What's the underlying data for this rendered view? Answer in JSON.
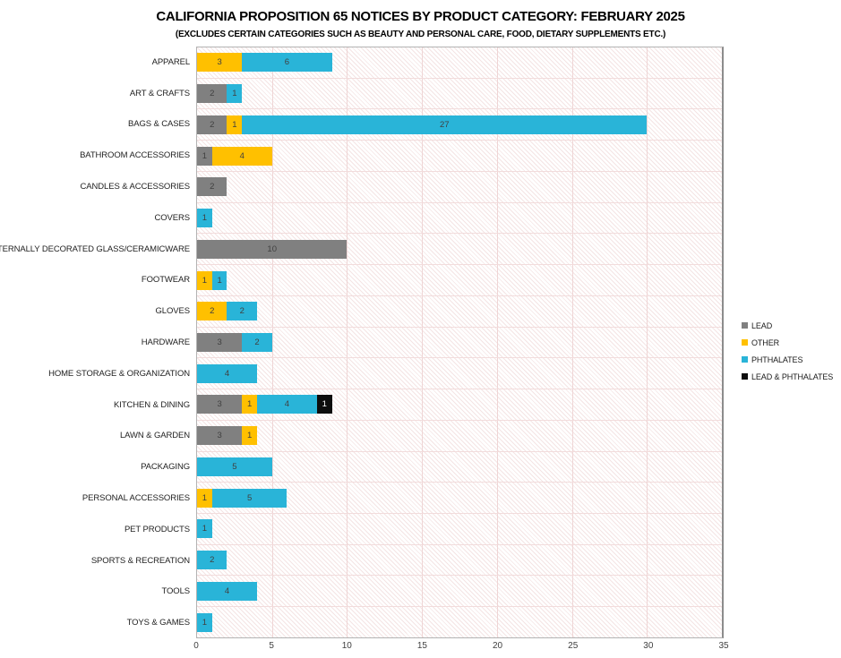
{
  "title": "CALIFORNIA PROPOSITION 65 NOTICES BY PRODUCT CATEGORY: FEBRUARY 2025",
  "subtitle": "(EXCLUDES CERTAIN CATEGORIES SUCH AS BEAUTY AND PERSONAL CARE, FOOD, DIETARY SUPPLEMENTS ETC.)",
  "colors": {
    "lead": "#808080",
    "other": "#FFC000",
    "phthalates": "#29B4D8",
    "lead_phthalates": "#0D0D0D",
    "gridline": "#EFD5D5",
    "value_label": "#404040"
  },
  "chart_data": {
    "type": "bar",
    "orientation": "horizontal",
    "stacked": true,
    "grid": true,
    "legend_position": "right",
    "xlim": [
      0,
      35
    ],
    "xticks": [
      0,
      5,
      10,
      15,
      20,
      25,
      30,
      35
    ],
    "categories": [
      "APPAREL",
      "ART & CRAFTS",
      "BAGS & CASES",
      "BATHROOM ACCESSORIES",
      "CANDLES & ACCESSORIES",
      "COVERS",
      "EXTERNALLY DECORATED GLASS/CERAMICWARE",
      "FOOTWEAR",
      "GLOVES",
      "HARDWARE",
      "HOME STORAGE & ORGANIZATION",
      "KITCHEN & DINING",
      "LAWN & GARDEN",
      "PACKAGING",
      "PERSONAL ACCESSORIES",
      "PET PRODUCTS",
      "SPORTS & RECREATION",
      "TOOLS",
      "TOYS & GAMES"
    ],
    "series": [
      {
        "name": "LEAD",
        "color": "#808080",
        "text_color": "#404040",
        "values": [
          0,
          2,
          2,
          1,
          2,
          0,
          10,
          0,
          0,
          3,
          0,
          3,
          3,
          0,
          0,
          0,
          0,
          0,
          0
        ]
      },
      {
        "name": "OTHER",
        "color": "#FFC000",
        "text_color": "#404040",
        "values": [
          3,
          0,
          1,
          4,
          0,
          0,
          0,
          1,
          2,
          0,
          0,
          1,
          1,
          0,
          1,
          0,
          0,
          0,
          0
        ]
      },
      {
        "name": "PHTHALATES",
        "color": "#29B4D8",
        "text_color": "#404040",
        "values": [
          6,
          1,
          27,
          0,
          0,
          1,
          0,
          1,
          2,
          2,
          4,
          4,
          0,
          5,
          5,
          1,
          2,
          4,
          1
        ]
      },
      {
        "name": "LEAD & PHTHALATES",
        "color": "#0D0D0D",
        "text_color": "#FFFFFF",
        "values": [
          0,
          0,
          0,
          0,
          0,
          0,
          0,
          0,
          0,
          0,
          0,
          1,
          0,
          0,
          0,
          0,
          0,
          0,
          0
        ]
      }
    ]
  }
}
